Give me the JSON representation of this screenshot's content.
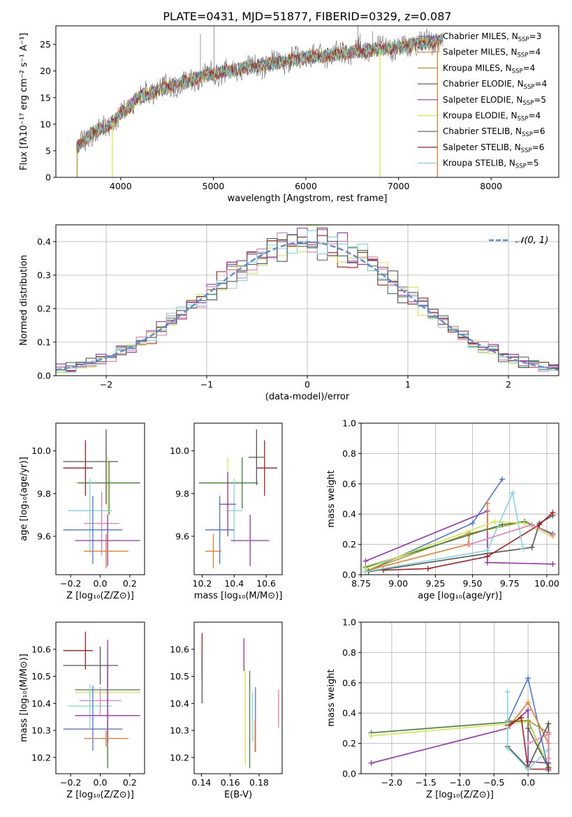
{
  "figure": {
    "title": "PLATE=0431, MJD=51877, FIBERID=0329, z=0.087"
  },
  "colors": {
    "Chabrier MILES": "#4a78d6",
    "Salpeter MILES": "#ee7a22",
    "Kroupa MILES": "#b09a2a",
    "Chabrier ELODIE": "#3f7f3f",
    "Salpeter ELODIE": "#9b2fb5",
    "Kroupa ELODIE": "#d8e84a",
    "Chabrier STELIB": "#555555",
    "Salpeter STELIB": "#b01a1a",
    "Kroupa STELIB": "#7fd8dc",
    "Pink": "#e77bbd",
    "Gaussian": "#5f8fdc"
  },
  "chart_data": [
    {
      "id": "spectrum",
      "type": "line",
      "xlabel": "wavelength [Angstrom, rest frame]",
      "ylabel": "Flux [fλ10⁻¹⁷ erg cm⁻² s⁻¹ A⁻¹]",
      "xlim": [
        3300,
        8730
      ],
      "ylim": [
        0,
        28.5
      ],
      "xticks": [
        4000,
        5000,
        6000,
        7000,
        8000
      ],
      "yticks": [
        0,
        5,
        10,
        15,
        20,
        25
      ],
      "grid": false,
      "legend_position": "top-right",
      "legend": [
        {
          "name": "Chabrier MILES",
          "sub": "SSP",
          "n": "=3"
        },
        {
          "name": "Salpeter MILES",
          "sub": "SSP",
          "n": "=4"
        },
        {
          "name": "Kroupa MILES",
          "sub": "SSP",
          "n": "=4"
        },
        {
          "name": "Chabrier ELODIE",
          "sub": "SSP",
          "n": "=4"
        },
        {
          "name": "Salpeter ELODIE",
          "sub": "SSP",
          "n": "=5"
        },
        {
          "name": "Kroupa ELODIE",
          "sub": "SSP",
          "n": "=4"
        },
        {
          "name": "Chabrier STELIB",
          "sub": "SSP",
          "n": "=6"
        },
        {
          "name": "Salpeter STELIB",
          "sub": "SSP",
          "n": "=6"
        },
        {
          "name": "Kroupa STELIB",
          "sub": "SSP",
          "n": "=5"
        }
      ],
      "continuum": {
        "x": [
          3520,
          3700,
          3900,
          4000,
          4200,
          4500,
          5000,
          5500,
          6000,
          6500,
          7000,
          7500
        ],
        "y": [
          5.5,
          8.5,
          10,
          12,
          15,
          17,
          19.5,
          21,
          22.5,
          23.5,
          24.5,
          26
        ]
      },
      "drop_lines": [
        {
          "series": "Kroupa MILES",
          "x": 3530
        },
        {
          "series": "Kroupa ELODIE",
          "x": 3910
        },
        {
          "series": "Kroupa ELODIE",
          "x": 6800
        },
        {
          "series": "Salpeter MILES",
          "x": 7420
        }
      ]
    },
    {
      "id": "residuals",
      "type": "histogram",
      "xlabel": "(data-model)/error",
      "ylabel": "Normed distribution",
      "xlim": [
        -2.5,
        2.5
      ],
      "ylim": [
        0,
        0.45
      ],
      "xticks": [
        -2,
        -1,
        0,
        1,
        2
      ],
      "yticks": [
        0.0,
        0.1,
        0.2,
        0.3,
        0.4
      ],
      "grid": true,
      "legend_position": "top-right",
      "legend_label": "𝒩(0, 1)",
      "bin_width": 0.1,
      "gaussian": {
        "mean": 0,
        "sigma": 1
      }
    },
    {
      "id": "age-vs-Z",
      "type": "errorbar",
      "xlabel": "Z [log₁₀(Z/Z⊙)]",
      "ylabel": "age  [log₁₀(age/yr)]",
      "xlim": [
        -0.3,
        0.3
      ],
      "ylim": [
        9.42,
        10.13
      ],
      "xticks": [
        -0.2,
        0.0,
        0.2
      ],
      "yticks": [
        9.6,
        9.8,
        10.0
      ],
      "grid": false,
      "points": [
        {
          "series": "Salpeter STELIB",
          "x": -0.1,
          "xerr": [
            0.15,
            0.05
          ],
          "y": 9.92,
          "yerr": [
            0.13,
            0.13
          ]
        },
        {
          "series": "Chabrier STELIB",
          "x": 0.04,
          "xerr": [
            0.29,
            0.08
          ],
          "y": 9.95,
          "yerr": [
            0.2,
            0.15
          ]
        },
        {
          "series": "Kroupa ELODIE",
          "x": 0.05,
          "xerr": [
            0.22,
            0.22
          ],
          "y": 9.85,
          "yerr": [
            0.3,
            0.12
          ]
        },
        {
          "series": "Chabrier ELODIE",
          "x": 0.06,
          "xerr": [
            0.21,
            0.21
          ],
          "y": 9.85,
          "yerr": [
            0.15,
            0.1
          ]
        },
        {
          "series": "Kroupa STELIB",
          "x": -0.07,
          "xerr": [
            0.15,
            0.15
          ],
          "y": 9.72,
          "yerr": [
            0.2,
            0.15
          ]
        },
        {
          "series": "Pink",
          "x": 0.01,
          "xerr": [
            0.12,
            0.12
          ],
          "y": 9.66,
          "yerr": [
            0.15,
            0.15
          ]
        },
        {
          "series": "Chabrier MILES",
          "x": -0.05,
          "xerr": [
            0.2,
            0.2
          ],
          "y": 9.63,
          "yerr": [
            0.16,
            0.16
          ]
        },
        {
          "series": "Salpeter ELODIE",
          "x": 0.05,
          "xerr": [
            0.22,
            0.22
          ],
          "y": 9.58,
          "yerr": [
            0.12,
            0.12
          ]
        },
        {
          "series": "Salpeter MILES",
          "x": 0.04,
          "xerr": [
            0.15,
            0.15
          ],
          "y": 9.53,
          "yerr": [
            0.08,
            0.08
          ]
        }
      ]
    },
    {
      "id": "age-vs-mass",
      "type": "errorbar",
      "xlabel": "mass [log₁₀(M/M⊙)]",
      "ylabel": "",
      "xlim": [
        10.15,
        10.7
      ],
      "ylim": [
        9.42,
        10.13
      ],
      "xticks": [
        10.2,
        10.4,
        10.6
      ],
      "yticks": [
        9.6,
        9.8,
        10.0
      ],
      "grid": false,
      "points": [
        {
          "series": "Salpeter STELIB",
          "x": 10.59,
          "xerr": [
            0.05,
            0.08
          ],
          "y": 9.92,
          "yerr": [
            0.13,
            0.13
          ]
        },
        {
          "series": "Chabrier STELIB",
          "x": 10.54,
          "xerr": [
            0.05,
            0.05
          ],
          "y": 9.97,
          "yerr": [
            0.13,
            0.13
          ]
        },
        {
          "series": "Kroupa ELODIE",
          "x": 10.36,
          "xerr": [
            0.18,
            0.1
          ],
          "y": 9.85,
          "yerr": [
            0.12,
            0.12
          ]
        },
        {
          "series": "Chabrier ELODIE",
          "x": 10.45,
          "xerr": [
            0.27,
            0.1
          ],
          "y": 9.85,
          "yerr": [
            0.12,
            0.12
          ]
        },
        {
          "series": "Kroupa STELIB",
          "x": 10.4,
          "xerr": [
            0.05,
            0.05
          ],
          "y": 9.72,
          "yerr": [
            0.15,
            0.15
          ]
        },
        {
          "series": "Chabrier MILES",
          "x": 10.31,
          "xerr": [
            0.09,
            0.09
          ],
          "y": 9.63,
          "yerr": [
            0.16,
            0.16
          ]
        },
        {
          "series": "Salpeter ELODIE",
          "x": 10.36,
          "xerr": [
            0.05,
            0.05
          ],
          "y": 9.75,
          "yerr": [
            0.15,
            0.15
          ]
        },
        {
          "series": "Salpeter ELODIE",
          "x": 10.5,
          "xerr": [
            0.12,
            0.12
          ],
          "y": 9.58,
          "yerr": [
            0.12,
            0.12
          ]
        },
        {
          "series": "Salpeter MILES",
          "x": 10.27,
          "xerr": [
            0.05,
            0.05
          ],
          "y": 9.53,
          "yerr": [
            0.08,
            0.08
          ]
        }
      ]
    },
    {
      "id": "weight-vs-age",
      "type": "line",
      "xlabel": "age  [log₁₀(age/yr)]",
      "ylabel": "mass weight",
      "xlim": [
        8.75,
        10.08
      ],
      "ylim": [
        0,
        1.0
      ],
      "xticks": [
        8.75,
        9.0,
        9.25,
        9.5,
        9.75,
        10.0
      ],
      "xtick_labels": [
        "8.75",
        "9.00",
        "9.25",
        "9.50",
        "9.75",
        "10.00"
      ],
      "yticks": [
        0.0,
        0.2,
        0.4,
        0.6,
        0.8,
        1.0
      ],
      "grid": true,
      "series": [
        {
          "name": "Salpeter ELODIE",
          "x": [
            8.78,
            9.6,
            9.6,
            10.04
          ],
          "y": [
            0.09,
            0.42,
            0.08,
            0.07
          ]
        },
        {
          "name": "Chabrier MILES",
          "x": [
            8.78,
            9.5,
            9.7
          ],
          "y": [
            0.02,
            0.34,
            0.63
          ]
        },
        {
          "name": "Salpeter MILES",
          "x": [
            8.8,
            9.47,
            9.48,
            9.6,
            9.6
          ],
          "y": [
            0.03,
            0.2,
            0.27,
            0.3,
            0.47
          ]
        },
        {
          "name": "Kroupa MILES",
          "x": [
            8.8,
            9.47,
            9.85
          ],
          "y": [
            0.03,
            0.27,
            0.35
          ]
        },
        {
          "name": "Chabrier ELODIE",
          "x": [
            8.78,
            9.7,
            9.85,
            10.04
          ],
          "y": [
            0.05,
            0.33,
            0.35,
            0.27
          ]
        },
        {
          "name": "Kroupa ELODIE",
          "x": [
            8.78,
            9.65,
            9.85,
            10.04
          ],
          "y": [
            0.04,
            0.35,
            0.34,
            0.25
          ]
        },
        {
          "name": "Chabrier STELIB",
          "x": [
            8.8,
            9.6,
            9.9,
            9.95,
            10.04
          ],
          "y": [
            0.02,
            0.14,
            0.18,
            0.34,
            0.39
          ]
        },
        {
          "name": "Salpeter STELIB",
          "x": [
            8.9,
            9.2,
            9.6,
            9.95,
            10.04
          ],
          "y": [
            0.03,
            0.04,
            0.12,
            0.33,
            0.41
          ]
        },
        {
          "name": "Kroupa STELIB",
          "x": [
            8.78,
            9.6,
            9.77,
            9.84
          ],
          "y": [
            0.02,
            0.16,
            0.54,
            0.17
          ]
        },
        {
          "name": "Pink",
          "x": [
            9.48,
            9.9,
            10.04
          ],
          "y": [
            0.2,
            0.33,
            0.26
          ]
        }
      ]
    },
    {
      "id": "mass-vs-Z",
      "type": "errorbar",
      "xlabel": "Z [log₁₀(Z/Z⊙)]",
      "ylabel": "mass [log₁₀(M/M⊙)]",
      "xlim": [
        -0.3,
        0.3
      ],
      "ylim": [
        10.14,
        10.7
      ],
      "xticks": [
        -0.2,
        0.0,
        0.2
      ],
      "yticks": [
        10.2,
        10.3,
        10.4,
        10.5,
        10.6
      ],
      "grid": false,
      "points": [
        {
          "series": "Salpeter STELIB",
          "x": -0.1,
          "xerr": [
            0.15,
            0.05
          ],
          "y": 10.595,
          "yerr": [
            0.07,
            0.07
          ]
        },
        {
          "series": "Chabrier STELIB",
          "x": 0.0,
          "xerr": [
            0.25,
            0.12
          ],
          "y": 10.54,
          "yerr": [
            0.07,
            0.07
          ]
        },
        {
          "series": "Kroupa ELODIE",
          "x": 0.05,
          "xerr": [
            0.22,
            0.22
          ],
          "y": 10.44,
          "yerr": [
            0.27,
            0.09
          ]
        },
        {
          "series": "Chabrier ELODIE",
          "x": 0.05,
          "xerr": [
            0.22,
            0.22
          ],
          "y": 10.45,
          "yerr": [
            0.29,
            0.1
          ]
        },
        {
          "series": "Pink",
          "x": 0.0,
          "xerr": [
            0.14,
            0.14
          ],
          "y": 10.41,
          "yerr": [
            0.05,
            0.05
          ]
        },
        {
          "series": "Kroupa STELIB",
          "x": -0.07,
          "xerr": [
            0.15,
            0.15
          ],
          "y": 10.39,
          "yerr": [
            0.08,
            0.08
          ]
        },
        {
          "series": "Salpeter ELODIE",
          "x": 0.05,
          "xerr": [
            0.22,
            0.22
          ],
          "y": 10.355,
          "yerr": [
            0.1,
            0.28
          ]
        },
        {
          "series": "Chabrier MILES",
          "x": -0.05,
          "xerr": [
            0.2,
            0.2
          ],
          "y": 10.305,
          "yerr": [
            0.08,
            0.16
          ]
        },
        {
          "series": "Salpeter MILES",
          "x": 0.04,
          "xerr": [
            0.15,
            0.15
          ],
          "y": 10.27,
          "yerr": [
            0.03,
            0.03
          ]
        }
      ]
    },
    {
      "id": "mass-vs-ebv",
      "type": "errorbar",
      "xlabel": "E(B-V)",
      "ylabel": "",
      "xlim": [
        0.135,
        0.196
      ],
      "ylim": [
        10.14,
        10.7
      ],
      "xticks": [
        0.14,
        0.16,
        0.18
      ],
      "yticks": [
        10.2,
        10.3,
        10.4,
        10.5,
        10.6
      ],
      "grid": false,
      "points": [
        {
          "series": "Salpeter STELIB",
          "x": 0.1405,
          "yerr": [
            0.09,
            0.08
          ],
          "y": 10.58
        },
        {
          "series": "Chabrier STELIB",
          "x": 0.1405,
          "yerr": [
            0.1,
            0.1
          ],
          "y": 10.5
        },
        {
          "series": "Salpeter ELODIE",
          "x": 0.1695,
          "yerr": [
            0.06,
            0.06
          ],
          "y": 10.58
        },
        {
          "series": "Kroupa ELODIE",
          "x": 0.1705,
          "yerr": [
            0.18,
            0.18
          ],
          "y": 10.35
        },
        {
          "series": "Chabrier ELODIE",
          "x": 0.1735,
          "yerr": [
            0.18,
            0.18
          ],
          "y": 10.34
        },
        {
          "series": "Kroupa STELIB",
          "x": 0.1755,
          "yerr": [
            0.09,
            0.09
          ],
          "y": 10.35
        },
        {
          "series": "Chabrier MILES",
          "x": 0.1775,
          "yerr": [
            0.12,
            0.12
          ],
          "y": 10.34
        },
        {
          "series": "Salpeter MILES",
          "x": 0.1772,
          "yerr": [
            0.06,
            0.06
          ],
          "y": 10.28
        },
        {
          "series": "Pink",
          "x": 0.1935,
          "yerr": [
            0.07,
            0.07
          ],
          "y": 10.38
        }
      ]
    },
    {
      "id": "weight-vs-Z",
      "type": "line",
      "xlabel": "Z [log₁₀(Z/Z⊙)]",
      "ylabel": "mass weight",
      "xlim": [
        -2.45,
        0.45
      ],
      "ylim": [
        0,
        1.0
      ],
      "xticks": [
        -2.0,
        -1.5,
        -1.0,
        -0.5,
        0.0
      ],
      "xtick_labels": [
        "−2.0",
        "−1.5",
        "−1.0",
        "−0.5",
        "0.0"
      ],
      "yticks": [
        0.0,
        0.2,
        0.4,
        0.6,
        0.8,
        1.0
      ],
      "grid": true,
      "series": [
        {
          "name": "Chabrier ELODIE",
          "x": [
            -2.3,
            0.0,
            0.3,
            0.3
          ],
          "y": [
            0.27,
            0.35,
            0.04,
            0.33
          ]
        },
        {
          "name": "Kroupa ELODIE",
          "x": [
            -2.3,
            0.0,
            0.3,
            0.3
          ],
          "y": [
            0.25,
            0.34,
            0.05,
            0.33
          ]
        },
        {
          "name": "Salpeter ELODIE",
          "x": [
            -2.3,
            -0.3,
            0.0,
            0.0,
            0.3
          ],
          "y": [
            0.07,
            0.3,
            0.42,
            0.08,
            0.07
          ]
        },
        {
          "name": "Chabrier MILES",
          "x": [
            -0.3,
            0.0,
            0.3
          ],
          "y": [
            0.34,
            0.63,
            0.02
          ]
        },
        {
          "name": "Salpeter MILES",
          "x": [
            -0.3,
            0.0,
            0.3
          ],
          "y": [
            0.3,
            0.47,
            0.2
          ]
        },
        {
          "name": "Kroupa MILES",
          "x": [
            -0.3,
            0.0,
            0.3
          ],
          "y": [
            0.35,
            0.35,
            0.27
          ]
        },
        {
          "name": "Chabrier STELIB",
          "x": [
            -0.3,
            0.0,
            0.3,
            0.3,
            0.0
          ],
          "y": [
            0.18,
            0.04,
            0.33,
            0.04,
            0.3
          ]
        },
        {
          "name": "Salpeter STELIB",
          "x": [
            -0.3,
            -0.1,
            0.0,
            0.3
          ],
          "y": [
            0.32,
            0.37,
            0.03,
            0.03
          ]
        },
        {
          "name": "Kroupa STELIB",
          "x": [
            -0.3,
            -0.3,
            0.0,
            0.3
          ],
          "y": [
            0.54,
            0.17,
            0.03,
            0.16
          ]
        },
        {
          "name": "Pink",
          "x": [
            0.0,
            0.3,
            0.3
          ],
          "y": [
            0.2,
            0.26,
            0.1
          ]
        }
      ]
    }
  ]
}
